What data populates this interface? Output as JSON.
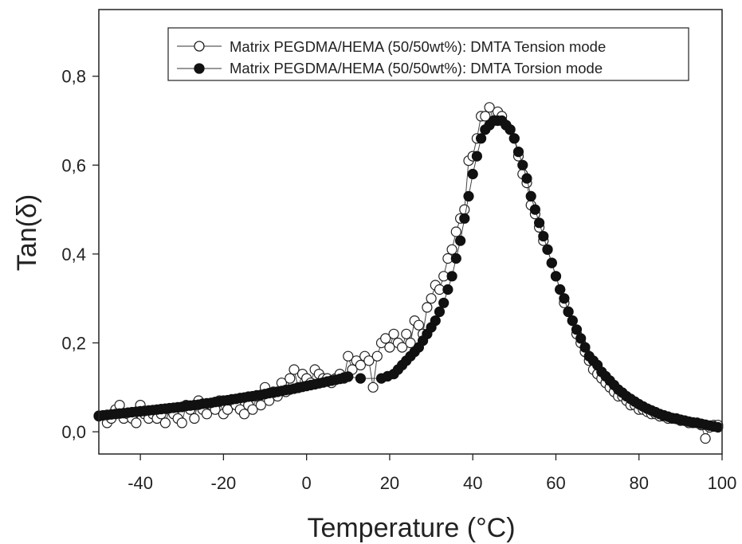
{
  "chart_data": {
    "type": "scatter",
    "xlabel": "Temperature (°C)",
    "ylabel": "Tan(δ)",
    "xlim": [
      -50,
      100
    ],
    "ylim": [
      -0.05,
      0.95
    ],
    "xticks": [
      -40,
      -20,
      0,
      20,
      40,
      60,
      80,
      100
    ],
    "xtick_labels": [
      "-40",
      "-20",
      "0",
      "20",
      "40",
      "60",
      "80",
      "100"
    ],
    "yticks": [
      0.0,
      0.2,
      0.4,
      0.6,
      0.8
    ],
    "ytick_labels": [
      "0,0",
      "0,2",
      "0,4",
      "0,6",
      "0,8"
    ],
    "grid": false,
    "legend_position": "top-right",
    "series": [
      {
        "name": "Matrix PEGDMA/HEMA (50/50wt%): DMTA Tension mode",
        "marker": "open-circle",
        "color": "#222222",
        "x": [
          -50,
          -48,
          -47,
          -46,
          -45,
          -44,
          -43,
          -42,
          -41,
          -40,
          -39,
          -38,
          -37,
          -36,
          -35,
          -34,
          -33,
          -32,
          -31,
          -30,
          -29,
          -28,
          -27,
          -26,
          -25,
          -24,
          -23,
          -22,
          -21,
          -20,
          -19,
          -18,
          -17,
          -16,
          -15,
          -14,
          -13,
          -12,
          -11,
          -10,
          -9,
          -8,
          -7,
          -6,
          -5,
          -4,
          -3,
          -2,
          -1,
          0,
          1,
          2,
          3,
          4,
          5,
          6,
          7,
          8,
          9,
          10,
          11,
          12,
          13,
          14,
          15,
          16,
          17,
          18,
          19,
          20,
          21,
          22,
          23,
          24,
          25,
          26,
          27,
          28,
          29,
          30,
          31,
          32,
          33,
          34,
          35,
          36,
          37,
          38,
          39,
          40,
          41,
          42,
          43,
          44,
          45,
          46,
          47,
          48,
          49,
          50,
          51,
          52,
          53,
          54,
          55,
          56,
          57,
          58,
          59,
          60,
          61,
          62,
          63,
          64,
          65,
          66,
          67,
          68,
          69,
          70,
          71,
          72,
          73,
          74,
          75,
          76,
          77,
          78,
          79,
          80,
          81,
          82,
          83,
          84,
          85,
          86,
          87,
          88,
          89,
          90,
          91,
          92,
          93,
          94,
          95,
          96,
          97,
          98,
          99
        ],
        "y": [
          0.035,
          0.02,
          0.03,
          0.05,
          0.06,
          0.03,
          0.04,
          0.03,
          0.02,
          0.06,
          0.04,
          0.03,
          0.04,
          0.03,
          0.04,
          0.02,
          0.05,
          0.04,
          0.03,
          0.02,
          0.06,
          0.05,
          0.03,
          0.07,
          0.05,
          0.04,
          0.06,
          0.05,
          0.07,
          0.04,
          0.05,
          0.07,
          0.06,
          0.05,
          0.04,
          0.06,
          0.05,
          0.08,
          0.06,
          0.1,
          0.07,
          0.09,
          0.08,
          0.11,
          0.09,
          0.12,
          0.14,
          0.1,
          0.13,
          0.12,
          0.11,
          0.14,
          0.13,
          0.12,
          0.12,
          0.11,
          0.12,
          0.13,
          0.12,
          0.17,
          0.14,
          0.16,
          0.15,
          0.17,
          0.16,
          0.1,
          0.17,
          0.2,
          0.21,
          0.19,
          0.22,
          0.2,
          0.19,
          0.22,
          0.2,
          0.25,
          0.24,
          0.22,
          0.28,
          0.3,
          0.33,
          0.32,
          0.35,
          0.39,
          0.41,
          0.45,
          0.48,
          0.5,
          0.61,
          0.62,
          0.66,
          0.71,
          0.71,
          0.73,
          0.7,
          0.72,
          0.71,
          0.69,
          0.68,
          0.66,
          0.62,
          0.58,
          0.56,
          0.51,
          0.49,
          0.46,
          0.43,
          0.41,
          0.38,
          0.35,
          0.32,
          0.29,
          0.27,
          0.25,
          0.22,
          0.2,
          0.18,
          0.16,
          0.14,
          0.13,
          0.12,
          0.11,
          0.1,
          0.09,
          0.08,
          0.08,
          0.07,
          0.06,
          0.06,
          0.05,
          0.05,
          0.045,
          0.04,
          0.04,
          0.035,
          0.035,
          0.03,
          0.03,
          0.03,
          0.025,
          0.025,
          0.02,
          0.02,
          0.02,
          0.015,
          -0.015,
          0.01,
          0.015,
          0.015
        ]
      },
      {
        "name": "Matrix PEGDMA/HEMA (50/50wt%): DMTA Torsion mode",
        "marker": "filled-circle",
        "color": "#111111",
        "x": [
          -50,
          -49,
          -48,
          -47,
          -46,
          -45,
          -44,
          -43,
          -42,
          -41,
          -40,
          -39,
          -38,
          -37,
          -36,
          -35,
          -34,
          -33,
          -32,
          -31,
          -30,
          -29,
          -28,
          -27,
          -26,
          -25,
          -24,
          -23,
          -22,
          -21,
          -20,
          -19,
          -18,
          -17,
          -16,
          -15,
          -14,
          -13,
          -12,
          -11,
          -10,
          -9,
          -8,
          -7,
          -6,
          -5,
          -4,
          -3,
          -2,
          -1,
          0,
          1,
          2,
          3,
          4,
          5,
          6,
          7,
          8,
          9,
          10,
          13,
          18,
          19.5,
          21,
          22,
          23,
          24,
          25,
          26,
          27,
          28,
          29,
          30,
          31,
          32,
          33,
          34,
          35,
          36,
          37,
          38,
          39,
          40,
          41,
          42,
          43,
          44,
          45,
          46,
          47,
          48,
          49,
          50,
          51,
          52,
          53,
          54,
          55,
          56,
          57,
          58,
          59,
          60,
          61,
          62,
          63,
          64,
          65,
          66,
          67,
          68,
          69,
          70,
          71,
          72,
          73,
          74,
          75,
          76,
          77,
          78,
          79,
          80,
          81,
          82,
          83,
          84,
          85,
          86,
          87,
          88,
          89,
          90,
          91,
          92,
          93,
          94,
          95,
          96,
          97,
          98,
          99
        ],
        "y": [
          0.036,
          0.037,
          0.038,
          0.039,
          0.04,
          0.041,
          0.042,
          0.043,
          0.044,
          0.045,
          0.046,
          0.047,
          0.048,
          0.049,
          0.05,
          0.051,
          0.052,
          0.053,
          0.054,
          0.055,
          0.056,
          0.058,
          0.059,
          0.06,
          0.061,
          0.063,
          0.064,
          0.065,
          0.067,
          0.068,
          0.07,
          0.071,
          0.073,
          0.074,
          0.076,
          0.077,
          0.079,
          0.08,
          0.082,
          0.083,
          0.085,
          0.087,
          0.088,
          0.09,
          0.092,
          0.094,
          0.095,
          0.097,
          0.099,
          0.101,
          0.103,
          0.105,
          0.107,
          0.109,
          0.111,
          0.113,
          0.115,
          0.117,
          0.119,
          0.122,
          0.124,
          0.12,
          0.12,
          0.125,
          0.13,
          0.14,
          0.15,
          0.16,
          0.17,
          0.18,
          0.19,
          0.205,
          0.22,
          0.235,
          0.25,
          0.27,
          0.29,
          0.32,
          0.35,
          0.39,
          0.43,
          0.48,
          0.53,
          0.58,
          0.62,
          0.66,
          0.68,
          0.69,
          0.7,
          0.7,
          0.7,
          0.69,
          0.68,
          0.66,
          0.63,
          0.6,
          0.57,
          0.53,
          0.5,
          0.47,
          0.44,
          0.41,
          0.38,
          0.35,
          0.32,
          0.3,
          0.27,
          0.25,
          0.23,
          0.21,
          0.19,
          0.17,
          0.16,
          0.15,
          0.135,
          0.125,
          0.115,
          0.105,
          0.095,
          0.088,
          0.08,
          0.074,
          0.068,
          0.062,
          0.057,
          0.052,
          0.048,
          0.044,
          0.04,
          0.037,
          0.034,
          0.031,
          0.029,
          0.027,
          0.025,
          0.023,
          0.021,
          0.02,
          0.018,
          0.016,
          0.014,
          0.012,
          0.01
        ]
      }
    ]
  }
}
